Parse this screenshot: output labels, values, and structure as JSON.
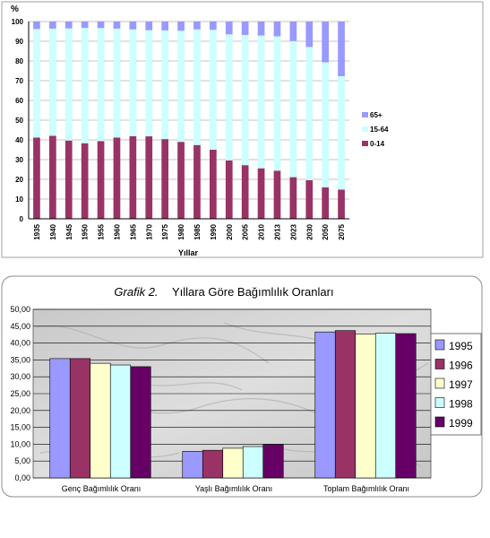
{
  "chart_data": [
    {
      "type": "bar",
      "stacked": true,
      "percent_stacked": true,
      "ylabel": "%",
      "xlabel": "Yıllar",
      "ylim": [
        0,
        100
      ],
      "yticks": [
        0,
        10,
        20,
        30,
        40,
        50,
        60,
        70,
        80,
        90,
        100
      ],
      "categories": [
        "1935",
        "1940",
        "1945",
        "1950",
        "1955",
        "1960",
        "1965",
        "1970",
        "1975",
        "1980",
        "1985",
        "1990",
        "2000",
        "2005",
        "2010",
        "2013",
        "2023",
        "2030",
        "2050",
        "2075"
      ],
      "series": [
        {
          "name": "0-14",
          "color": "#993366",
          "values": [
            41.2,
            42.1,
            39.7,
            38.3,
            39.4,
            41.2,
            41.9,
            41.8,
            40.4,
            39.0,
            37.4,
            35.0,
            29.6,
            27.2,
            25.6,
            24.4,
            21.1,
            19.6,
            15.9,
            14.8
          ]
        },
        {
          "name": "15-64",
          "color": "#ccffff",
          "values": [
            55.0,
            54.3,
            56.8,
            58.5,
            57.3,
            55.2,
            54.1,
            53.8,
            55.1,
            56.3,
            58.6,
            60.8,
            63.9,
            66.0,
            67.3,
            68.1,
            69.0,
            67.5,
            63.4,
            57.5
          ]
        },
        {
          "name": "65+",
          "color": "#9999ff",
          "values": [
            3.8,
            3.6,
            3.5,
            3.2,
            3.3,
            3.6,
            4.0,
            4.4,
            4.5,
            4.7,
            4.0,
            4.2,
            6.5,
            6.8,
            7.1,
            7.5,
            9.9,
            12.9,
            20.7,
            27.7
          ]
        }
      ],
      "legend_order": [
        "65+",
        "15-64",
        "0-14"
      ],
      "legend_position": "right",
      "grid": true
    },
    {
      "type": "bar",
      "title_italic": "Grafik 2.",
      "title": "Yıllara Göre Bağımlılık Oranları",
      "ylim": [
        0,
        50
      ],
      "yticks": [
        "0,00",
        "5,00",
        "10,00",
        "15,00",
        "20,00",
        "25,00",
        "30,00",
        "35,00",
        "40,00",
        "45,00",
        "50,00"
      ],
      "categories": [
        "Genç Bağımlılık Oranı",
        "Yaşlı Bağımlılık Oranı",
        "Toplam Bağımlılık Oranı"
      ],
      "series": [
        {
          "name": "1995",
          "color": "#9999ff",
          "values": [
            35.4,
            7.9,
            43.3
          ]
        },
        {
          "name": "1996",
          "color": "#993366",
          "values": [
            35.4,
            8.2,
            43.7
          ]
        },
        {
          "name": "1997",
          "color": "#ffffcc",
          "values": [
            34.0,
            8.8,
            42.7
          ]
        },
        {
          "name": "1998",
          "color": "#ccffff",
          "values": [
            33.5,
            9.3,
            42.9
          ]
        },
        {
          "name": "1999",
          "color": "#660066",
          "values": [
            33.0,
            9.9,
            42.8
          ]
        }
      ],
      "legend_position": "right",
      "grid": true,
      "background": "marble"
    }
  ]
}
